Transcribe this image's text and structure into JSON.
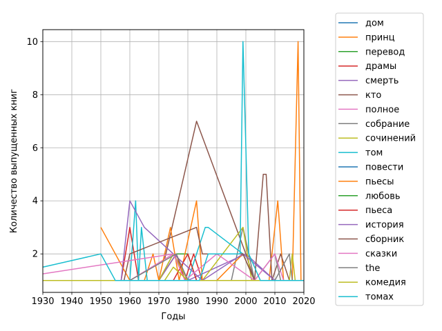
{
  "chart_data": {
    "type": "line",
    "xlabel": "Годы",
    "ylabel": "Количество выпущенных книг",
    "xlim": [
      1930,
      2020
    ],
    "ylim": [
      0.55,
      10.45
    ],
    "x_ticks": [
      1930,
      1940,
      1950,
      1960,
      1970,
      1980,
      1990,
      2000,
      2010,
      2020
    ],
    "y_ticks": [
      2,
      4,
      6,
      8,
      10
    ],
    "grid": true,
    "legend_position": "outside-right",
    "series": [
      {
        "name": "дом",
        "color": "#1f77b4",
        "points": [
          [
            1930,
            1
          ],
          [
            1960,
            1
          ],
          [
            2000,
            1
          ],
          [
            2020,
            1
          ]
        ]
      },
      {
        "name": "принц",
        "color": "#ff7f0e",
        "points": [
          [
            1930,
            1
          ],
          [
            1965,
            1
          ],
          [
            1968,
            2
          ],
          [
            1970,
            1
          ],
          [
            1985,
            1
          ],
          [
            2000,
            1
          ],
          [
            2008,
            1
          ],
          [
            2011,
            4
          ],
          [
            2013,
            1
          ],
          [
            2016,
            1
          ],
          [
            2018,
            10
          ],
          [
            2019,
            1
          ],
          [
            2020,
            1
          ]
        ]
      },
      {
        "name": "перевод",
        "color": "#2ca02c",
        "points": [
          [
            1930,
            1
          ],
          [
            1970,
            1
          ],
          [
            1976,
            2
          ],
          [
            1980,
            2
          ],
          [
            1983,
            1
          ],
          [
            2000,
            1
          ],
          [
            2020,
            1
          ]
        ]
      },
      {
        "name": "драмы",
        "color": "#d62728",
        "points": [
          [
            1930,
            1
          ],
          [
            1957,
            1
          ],
          [
            1960,
            3
          ],
          [
            1963,
            1
          ],
          [
            1970,
            1
          ],
          [
            1976,
            2
          ],
          [
            1979,
            1
          ],
          [
            1982,
            2
          ],
          [
            1985,
            1
          ],
          [
            2000,
            1
          ],
          [
            2020,
            1
          ]
        ]
      },
      {
        "name": "смерть",
        "color": "#9467bd",
        "points": [
          [
            1930,
            1
          ],
          [
            1970,
            1
          ],
          [
            1976,
            2
          ],
          [
            1980,
            1
          ],
          [
            2000,
            2
          ],
          [
            2010,
            1
          ],
          [
            2020,
            1
          ]
        ]
      },
      {
        "name": "кто",
        "color": "#8c564b",
        "points": [
          [
            1972,
            1.8
          ],
          [
            1983,
            7
          ],
          [
            2000,
            2
          ],
          [
            2003,
            1
          ],
          [
            2006,
            5
          ],
          [
            2007,
            5
          ],
          [
            2009,
            1
          ],
          [
            2012,
            2
          ],
          [
            2015,
            1
          ],
          [
            2020,
            1
          ]
        ]
      },
      {
        "name": "полное",
        "color": "#e377c2",
        "points": [
          [
            1960,
            1
          ],
          [
            1975,
            2
          ],
          [
            1980,
            1
          ],
          [
            1990,
            1
          ],
          [
            2000,
            1
          ],
          [
            2020,
            1
          ]
        ]
      },
      {
        "name": "собрание",
        "color": "#7f7f7f",
        "points": [
          [
            1930,
            1
          ],
          [
            1970,
            1
          ],
          [
            1975,
            2
          ],
          [
            1980,
            1
          ],
          [
            1995,
            1
          ],
          [
            1999,
            3
          ],
          [
            2003,
            1
          ],
          [
            2010,
            2
          ],
          [
            2012,
            1
          ],
          [
            2020,
            1
          ]
        ]
      },
      {
        "name": "сочинений",
        "color": "#bcbd22",
        "points": [
          [
            1930,
            1
          ],
          [
            1970,
            1
          ],
          [
            1975,
            2
          ],
          [
            1980,
            1
          ],
          [
            1985,
            1
          ],
          [
            1999,
            3
          ],
          [
            2002,
            1
          ],
          [
            2015,
            1
          ],
          [
            2016,
            2
          ],
          [
            2017,
            1
          ],
          [
            2020,
            1
          ]
        ]
      },
      {
        "name": "том",
        "color": "#17becf",
        "points": [
          [
            1930,
            1
          ],
          [
            1960,
            1
          ],
          [
            1962,
            4
          ],
          [
            1963,
            1
          ],
          [
            1964,
            3
          ],
          [
            1966,
            1
          ],
          [
            1980,
            1
          ],
          [
            1986,
            3
          ],
          [
            1987,
            3
          ],
          [
            1999,
            2
          ],
          [
            2003,
            1
          ],
          [
            2020,
            1
          ]
        ]
      },
      {
        "name": "повести",
        "color": "#1f77b4",
        "points": [
          [
            1930,
            1
          ],
          [
            1970,
            1
          ],
          [
            1980,
            1
          ],
          [
            2000,
            1
          ],
          [
            2020,
            1
          ]
        ]
      },
      {
        "name": "пьесы",
        "color": "#ff7f0e",
        "points": [
          [
            1950,
            3
          ],
          [
            1955,
            2
          ],
          [
            1960,
            1
          ],
          [
            1970,
            1
          ],
          [
            1974,
            3
          ],
          [
            1977,
            1
          ],
          [
            1983,
            4
          ],
          [
            1985,
            1
          ],
          [
            1990,
            1
          ],
          [
            1999,
            2
          ],
          [
            2003,
            1
          ],
          [
            2020,
            1
          ]
        ]
      },
      {
        "name": "любовь",
        "color": "#2ca02c",
        "points": [
          [
            1930,
            1
          ],
          [
            2000,
            1
          ],
          [
            2020,
            1
          ]
        ]
      },
      {
        "name": "пьеса",
        "color": "#d62728",
        "points": [
          [
            1930,
            1
          ],
          [
            1975,
            1
          ],
          [
            1980,
            2
          ],
          [
            1983,
            1
          ],
          [
            2000,
            1
          ],
          [
            2020,
            1
          ]
        ]
      },
      {
        "name": "история",
        "color": "#9467bd",
        "points": [
          [
            1930,
            1
          ],
          [
            1957,
            1
          ],
          [
            1960,
            4
          ],
          [
            1965,
            3
          ],
          [
            1975,
            2
          ],
          [
            1985,
            1
          ],
          [
            1999,
            2
          ],
          [
            2010,
            1
          ],
          [
            2020,
            1
          ]
        ]
      },
      {
        "name": "сборник",
        "color": "#8c564b",
        "points": [
          [
            1930,
            1
          ],
          [
            1958,
            1
          ],
          [
            1960,
            2
          ],
          [
            1983,
            3
          ],
          [
            1985,
            2
          ],
          [
            1999,
            2
          ],
          [
            2003,
            1
          ],
          [
            2020,
            1
          ]
        ]
      },
      {
        "name": "сказки",
        "color": "#e377c2",
        "points": [
          [
            1930,
            1.25
          ],
          [
            1975,
            2
          ],
          [
            1979,
            1
          ],
          [
            1990,
            2
          ],
          [
            2003,
            1
          ],
          [
            2010,
            2
          ],
          [
            2013,
            1
          ],
          [
            2020,
            1
          ]
        ]
      },
      {
        "name": "the",
        "color": "#7f7f7f",
        "points": [
          [
            1930,
            1
          ],
          [
            1960,
            1
          ],
          [
            1976,
            2
          ],
          [
            1980,
            1
          ],
          [
            1990,
            1
          ],
          [
            2010,
            1
          ],
          [
            2015,
            2
          ],
          [
            2016,
            1
          ],
          [
            2020,
            1
          ]
        ]
      },
      {
        "name": "комедия",
        "color": "#bcbd22",
        "points": [
          [
            1930,
            1
          ],
          [
            1972,
            1
          ],
          [
            1975,
            1.5
          ],
          [
            1980,
            1
          ],
          [
            1990,
            1
          ],
          [
            2000,
            1
          ],
          [
            2020,
            1
          ]
        ]
      },
      {
        "name": "томах",
        "color": "#17becf",
        "points": [
          [
            1930,
            1.5
          ],
          [
            1950,
            2
          ],
          [
            1955,
            1
          ],
          [
            1960,
            1
          ],
          [
            1977,
            1
          ],
          [
            1980,
            1
          ],
          [
            1984,
            1
          ],
          [
            1987,
            2
          ],
          [
            1998,
            2
          ],
          [
            1999,
            10
          ],
          [
            2001,
            2
          ],
          [
            2005,
            1
          ],
          [
            2020,
            1
          ]
        ]
      }
    ]
  }
}
